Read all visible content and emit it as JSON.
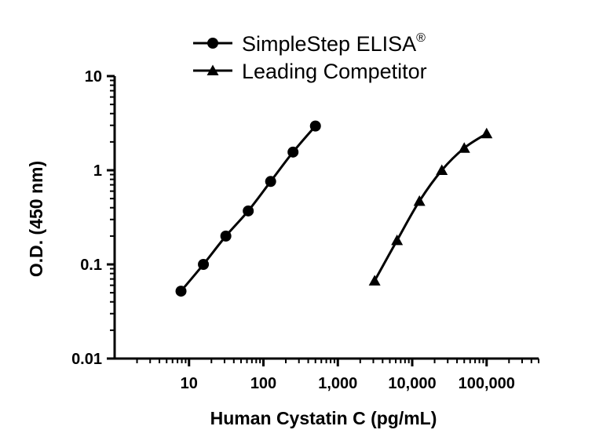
{
  "chart_data": {
    "type": "line",
    "xlabel": "Human Cystatin C (pg/mL)",
    "ylabel": "O.D. (450 nm)",
    "x_scale": "log",
    "y_scale": "log",
    "xlim": [
      1,
      500000
    ],
    "ylim": [
      0.01,
      10
    ],
    "x_ticks": [
      {
        "value": 10,
        "label": "10"
      },
      {
        "value": 100,
        "label": "100"
      },
      {
        "value": 1000,
        "label": "1,000"
      },
      {
        "value": 10000,
        "label": "10,000"
      },
      {
        "value": 100000,
        "label": "100,000"
      }
    ],
    "y_ticks": [
      {
        "value": 0.01,
        "label": "0.01"
      },
      {
        "value": 0.1,
        "label": "0.1"
      },
      {
        "value": 1,
        "label": "1"
      },
      {
        "value": 10,
        "label": "10"
      }
    ],
    "legend_position": "top",
    "series": [
      {
        "name": "SimpleStep ELISA",
        "name_superscript": "®",
        "marker": "circle",
        "color": "#000000",
        "x": [
          7.8,
          15.6,
          31.25,
          62.5,
          125,
          250,
          500
        ],
        "y": [
          0.052,
          0.1,
          0.2,
          0.37,
          0.76,
          1.56,
          2.95
        ]
      },
      {
        "name": "Leading Competitor",
        "marker": "triangle",
        "color": "#000000",
        "x": [
          3125,
          6250,
          12500,
          25000,
          50000,
          100000
        ],
        "y": [
          0.067,
          0.18,
          0.47,
          1.0,
          1.72,
          2.45
        ]
      }
    ]
  }
}
